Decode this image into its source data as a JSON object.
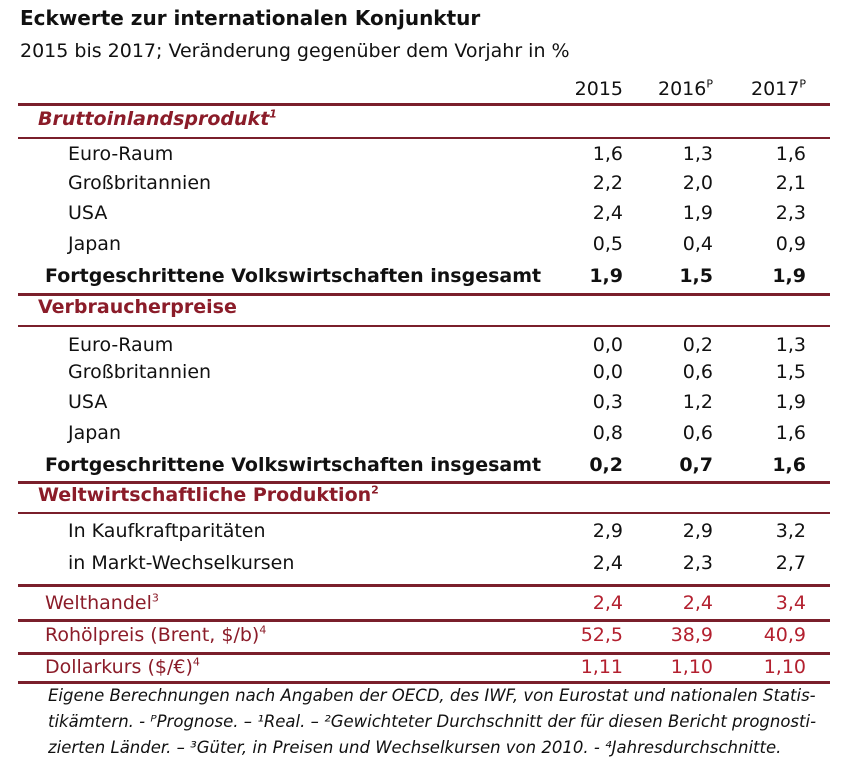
{
  "title": "Eckwerte zur internationalen Konjunktur",
  "subtitle": "2015 bis 2017; Veränderung gegenüber dem Vorjahr in %",
  "columns": [
    "2015",
    "2016",
    "2017"
  ],
  "column_superscripts": [
    "",
    "P",
    "P"
  ],
  "sections": {
    "bip": {
      "title": "Bruttoinlandsprodukt",
      "sup": "1",
      "rows": [
        {
          "label": "Euro-Raum",
          "v": [
            "1,6",
            "1,3",
            "1,6"
          ]
        },
        {
          "label": "Großbritannien",
          "v": [
            "2,2",
            "2,0",
            "2,1"
          ]
        },
        {
          "label": "USA",
          "v": [
            "2,4",
            "1,9",
            "2,3"
          ]
        },
        {
          "label": "Japan",
          "v": [
            "0,5",
            "0,4",
            "0,9"
          ]
        }
      ],
      "total": {
        "label": "Fortgeschrittene Volkswirtschaften insgesamt",
        "v": [
          "1,9",
          "1,5",
          "1,9"
        ]
      }
    },
    "vp": {
      "title": "Verbraucherpreise",
      "rows": [
        {
          "label": "Euro-Raum",
          "v": [
            "0,0",
            "0,2",
            "1,3"
          ]
        },
        {
          "label": "Großbritannien",
          "v": [
            "0,0",
            "0,6",
            "1,5"
          ]
        },
        {
          "label": "USA",
          "v": [
            "0,3",
            "1,2",
            "1,9"
          ]
        },
        {
          "label": "Japan",
          "v": [
            "0,8",
            "0,6",
            "1,6"
          ]
        }
      ],
      "total": {
        "label": "Fortgeschrittene Volkswirtschaften insgesamt",
        "v": [
          "0,2",
          "0,7",
          "1,6"
        ]
      }
    },
    "wp": {
      "title": "Weltwirtschaftliche Produktion",
      "sup": "2",
      "rows": [
        {
          "label": "In Kaufkraftparitäten",
          "v": [
            "2,9",
            "2,9",
            "3,2"
          ]
        },
        {
          "label": "in Markt-Wechselkursen",
          "v": [
            "2,4",
            "2,3",
            "2,7"
          ]
        }
      ]
    }
  },
  "extra_rows": [
    {
      "label": "Welthandel",
      "sup": "3",
      "v": [
        "2,4",
        "2,4",
        "3,4"
      ]
    },
    {
      "label": "Rohölpreis (Brent, $/b)",
      "sup": "4",
      "v": [
        "52,5",
        "38,9",
        "40,9"
      ]
    },
    {
      "label": "Dollarkurs ($/€)",
      "sup": "4",
      "v": [
        "1,11",
        "1,10",
        "1,10"
      ]
    }
  ],
  "footnote_lines": [
    "Eigene Berechnungen nach Angaben der OECD, des IWF, von Eurostat und nationalen Statis-",
    "tikämtern. - ᴾPrognose. – ¹Real. – ²Gewichteter Durchschnitt der für diesen Bericht prognosti-",
    "zierten Länder. – ³Güter, in Preisen und Wechselkursen von 2010. - ⁴Jahresdurchschnitte."
  ],
  "colors": {
    "maroon": "#8b1c29",
    "rule": "#7a1f2b",
    "red": "#b3202f"
  }
}
